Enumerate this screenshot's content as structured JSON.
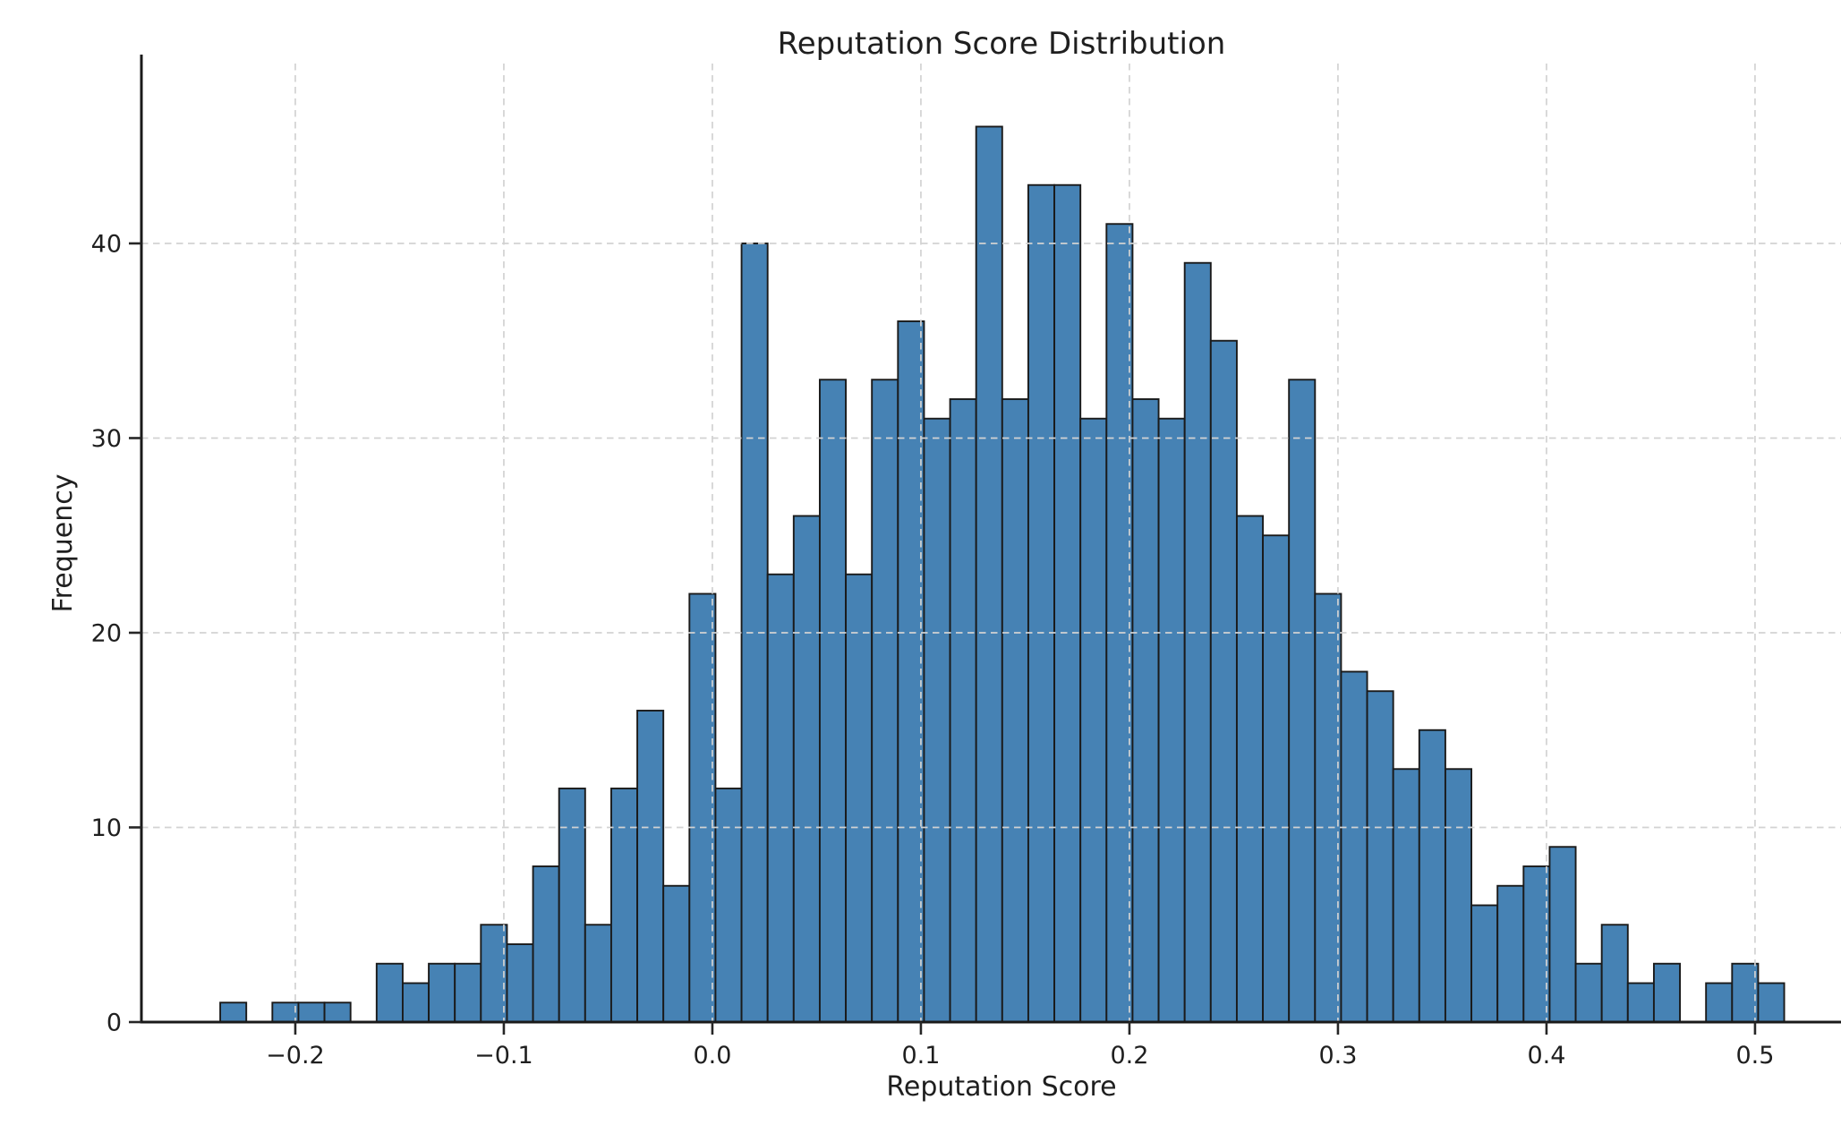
{
  "chart_data": {
    "type": "bar",
    "subtype": "histogram",
    "title": "Reputation Score Distribution",
    "xlabel": "Reputation Score",
    "ylabel": "Frequency",
    "legend": null,
    "grid": true,
    "grid_style": "dashed",
    "xlim": [
      -0.2738,
      0.5511
    ],
    "ylim": [
      0,
      49.24
    ],
    "x_ticks": [
      {
        "value": -0.2,
        "label": "−0.2"
      },
      {
        "value": -0.1,
        "label": "−0.1"
      },
      {
        "value": 0.0,
        "label": "0.0"
      },
      {
        "value": 0.1,
        "label": "0.1"
      },
      {
        "value": 0.2,
        "label": "0.2"
      },
      {
        "value": 0.3,
        "label": "0.3"
      },
      {
        "value": 0.4,
        "label": "0.4"
      },
      {
        "value": 0.5,
        "label": "0.5"
      }
    ],
    "y_ticks": [
      {
        "value": 0,
        "label": "0"
      },
      {
        "value": 10,
        "label": "10"
      },
      {
        "value": 20,
        "label": "20"
      },
      {
        "value": 30,
        "label": "30"
      },
      {
        "value": 40,
        "label": "40"
      }
    ],
    "bins": {
      "start": -0.236,
      "width": 0.0125,
      "heights": [
        1,
        0,
        1,
        1,
        1,
        0,
        3,
        2,
        3,
        3,
        5,
        4,
        8,
        12,
        5,
        12,
        16,
        7,
        22,
        12,
        40,
        23,
        26,
        33,
        23,
        33,
        36,
        31,
        32,
        46,
        32,
        43,
        43,
        31,
        41,
        32,
        31,
        39,
        35,
        26,
        25,
        33,
        22,
        18,
        17,
        13,
        15,
        13,
        6,
        7,
        8,
        9,
        3,
        5,
        2,
        3,
        0,
        2,
        3,
        2
      ]
    },
    "colors": {
      "bar_fill": "#4682B4",
      "bar_edge": "#1a1a1a",
      "grid_line": "#d2d2d2",
      "spine": "#1a1a1a",
      "tick_mark": "#262626",
      "text": "#1f1f1f",
      "background": "#ffffff"
    }
  }
}
